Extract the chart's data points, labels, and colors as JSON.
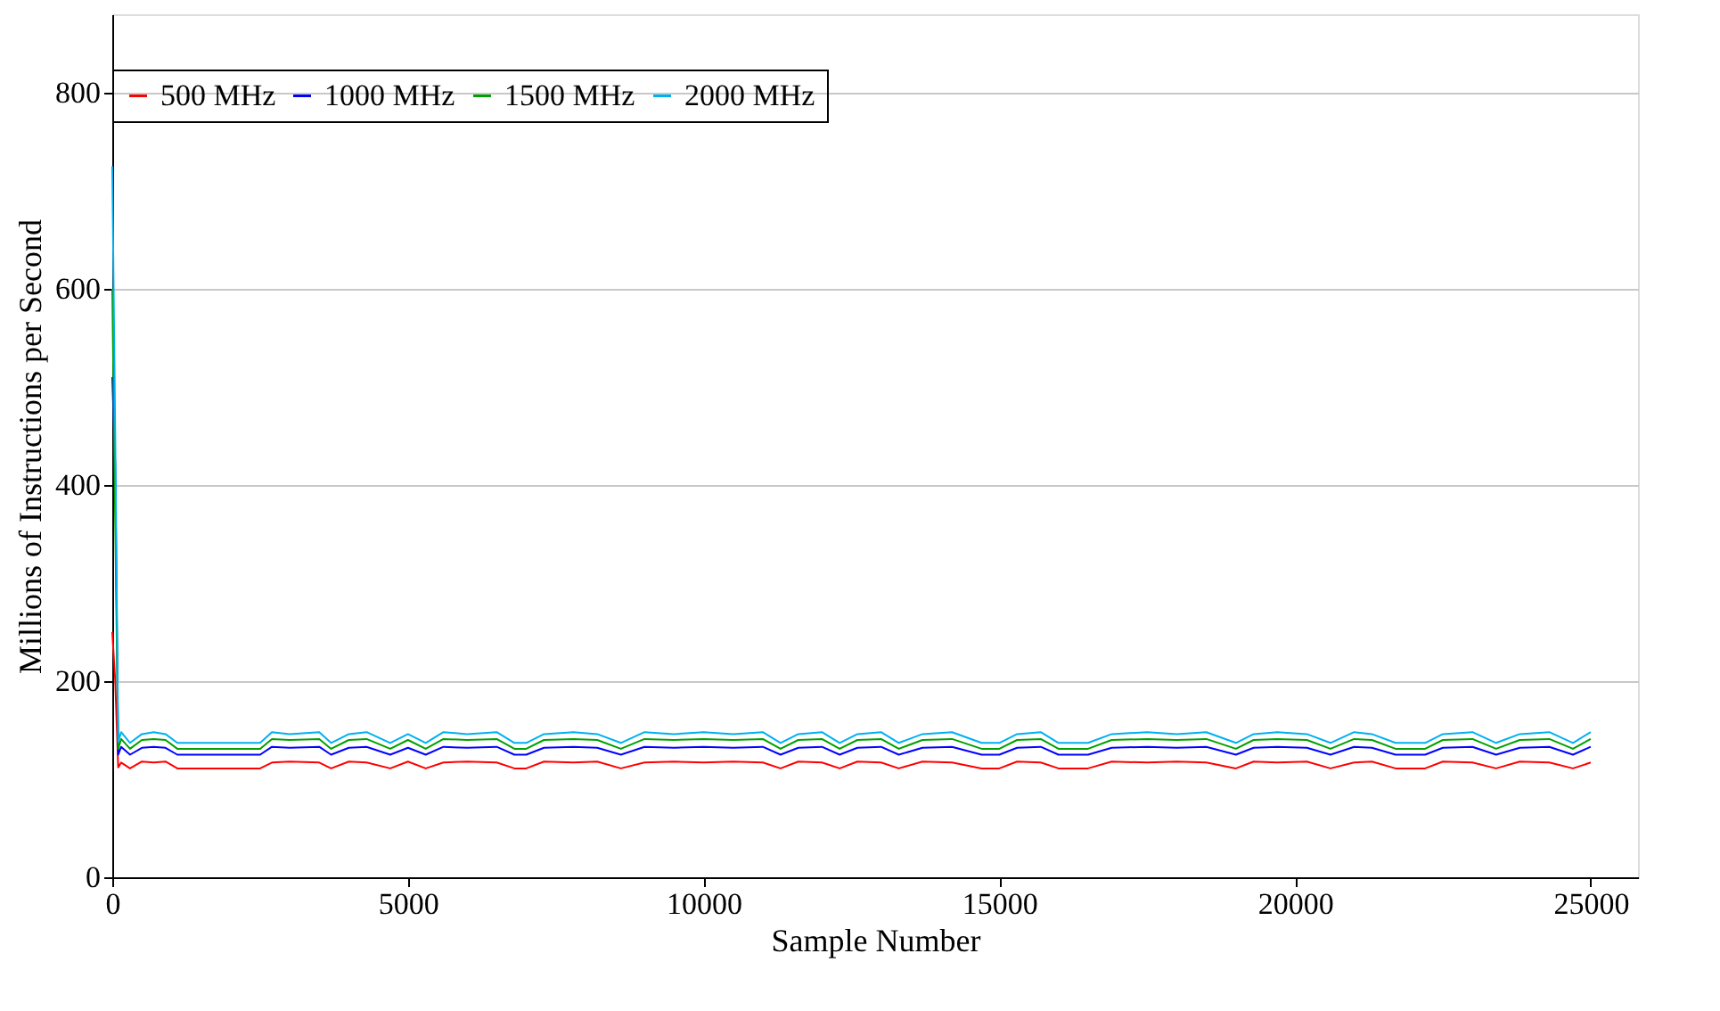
{
  "chart_data": {
    "type": "line",
    "xlabel": "Sample Number",
    "ylabel": "Millions of Instructions per Second",
    "x": [
      0,
      50,
      100,
      150,
      300,
      500,
      700,
      900,
      1100,
      1500,
      2000,
      2500,
      2700,
      3000,
      3500,
      3700,
      4000,
      4300,
      4700,
      5000,
      5300,
      5600,
      6000,
      6500,
      6800,
      7000,
      7300,
      7800,
      8200,
      8600,
      9000,
      9500,
      10000,
      10500,
      11000,
      11300,
      11600,
      12000,
      12300,
      12600,
      13000,
      13300,
      13700,
      14200,
      14700,
      15000,
      15300,
      15700,
      16000,
      16500,
      16900,
      17500,
      18000,
      18500,
      19000,
      19300,
      19700,
      20200,
      20600,
      21000,
      21300,
      21700,
      22200,
      22500,
      23000,
      23400,
      23800,
      24300,
      24700,
      25000
    ],
    "series": [
      {
        "name": "500 MHz",
        "color": "#ff0000",
        "values": [
          250,
          200,
          112,
          117,
          111,
          118,
          117,
          118,
          111,
          111,
          111,
          111,
          117,
          118,
          117,
          111,
          118,
          117,
          111,
          118,
          111,
          117,
          118,
          117,
          111,
          111,
          118,
          117,
          118,
          111,
          117,
          118,
          117,
          118,
          117,
          111,
          118,
          117,
          111,
          118,
          117,
          111,
          118,
          117,
          111,
          111,
          118,
          117,
          111,
          111,
          118,
          117,
          118,
          117,
          111,
          118,
          117,
          118,
          111,
          117,
          118,
          111,
          111,
          118,
          117,
          111,
          118,
          117,
          111,
          117
        ]
      },
      {
        "name": "1000 MHz",
        "color": "#0000ff",
        "values": [
          510,
          420,
          125,
          133,
          125,
          132,
          133,
          132,
          125,
          125,
          125,
          125,
          133,
          132,
          133,
          125,
          132,
          133,
          125,
          132,
          125,
          133,
          132,
          133,
          125,
          125,
          132,
          133,
          132,
          125,
          133,
          132,
          133,
          132,
          133,
          125,
          132,
          133,
          125,
          132,
          133,
          125,
          132,
          133,
          125,
          125,
          132,
          133,
          125,
          125,
          132,
          133,
          132,
          133,
          125,
          132,
          133,
          132,
          125,
          133,
          132,
          125,
          125,
          132,
          133,
          125,
          132,
          133,
          125,
          133
        ]
      },
      {
        "name": "1500 MHz",
        "color": "#00a000",
        "values": [
          600,
          360,
          131,
          141,
          131,
          140,
          141,
          140,
          131,
          131,
          131,
          131,
          141,
          140,
          141,
          131,
          140,
          141,
          131,
          140,
          131,
          141,
          140,
          141,
          131,
          131,
          140,
          141,
          140,
          131,
          141,
          140,
          141,
          140,
          141,
          131,
          140,
          141,
          131,
          140,
          141,
          131,
          140,
          141,
          131,
          131,
          140,
          141,
          131,
          131,
          140,
          141,
          140,
          141,
          131,
          140,
          141,
          140,
          131,
          141,
          140,
          131,
          131,
          140,
          141,
          131,
          140,
          141,
          131,
          141
        ]
      },
      {
        "name": "2000 MHz",
        "color": "#00b0f0",
        "values": [
          725,
          450,
          138,
          148,
          137,
          146,
          148,
          146,
          137,
          137,
          137,
          137,
          148,
          146,
          148,
          137,
          146,
          148,
          137,
          146,
          137,
          148,
          146,
          148,
          137,
          137,
          146,
          148,
          146,
          137,
          148,
          146,
          148,
          146,
          148,
          137,
          146,
          148,
          137,
          146,
          148,
          137,
          146,
          148,
          137,
          137,
          146,
          148,
          137,
          137,
          146,
          148,
          146,
          148,
          137,
          146,
          148,
          146,
          137,
          148,
          146,
          137,
          137,
          146,
          148,
          137,
          146,
          148,
          137,
          148
        ]
      }
    ],
    "xlim": [
      0,
      25800
    ],
    "xticks": [
      0,
      5000,
      10000,
      15000,
      20000,
      25000
    ],
    "ylim": [
      0,
      880
    ],
    "yticks": [
      0,
      200,
      400,
      600,
      800
    ],
    "grid": "y",
    "legend": "top",
    "marker": "none",
    "line_style": "solid"
  }
}
